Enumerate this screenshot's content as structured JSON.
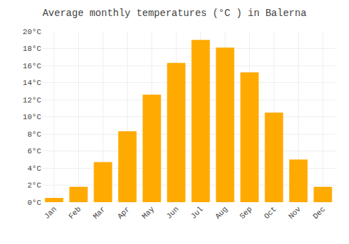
{
  "chart_data": {
    "type": "bar",
    "title": "Average monthly temperatures (°C ) in Balerna",
    "categories": [
      "Jan",
      "Feb",
      "Mar",
      "Apr",
      "May",
      "Jun",
      "Jul",
      "Aug",
      "Sep",
      "Oct",
      "Nov",
      "Dec"
    ],
    "values": [
      0.5,
      1.8,
      4.7,
      8.3,
      12.6,
      16.3,
      19.0,
      18.1,
      15.2,
      10.5,
      5.0,
      1.8
    ],
    "color": "#FFAA00",
    "ylim": [
      0,
      20
    ],
    "yticks": [
      {
        "value": 0,
        "label": "0°C"
      },
      {
        "value": 2,
        "label": "2°C"
      },
      {
        "value": 4,
        "label": "4°C"
      },
      {
        "value": 6,
        "label": "6°C"
      },
      {
        "value": 8,
        "label": "8°C"
      },
      {
        "value": 10,
        "label": "10°C"
      },
      {
        "value": 12,
        "label": "12°C"
      },
      {
        "value": 14,
        "label": "14°C"
      },
      {
        "value": 16,
        "label": "16°C"
      },
      {
        "value": 18,
        "label": "18°C"
      },
      {
        "value": 20,
        "label": "20°C"
      }
    ],
    "grid": true
  }
}
